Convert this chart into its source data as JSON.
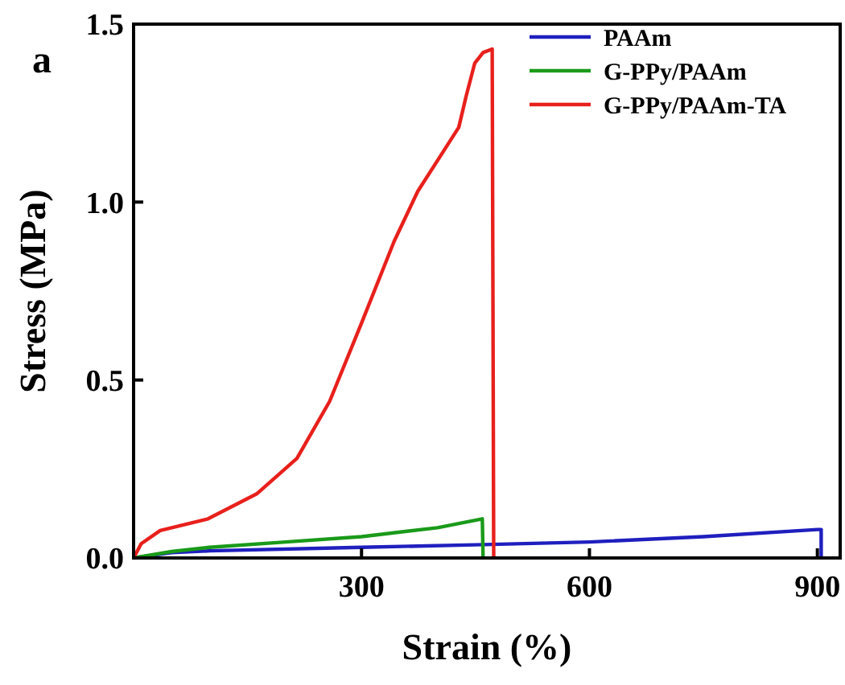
{
  "chart_data": {
    "type": "line",
    "title": "a",
    "xlabel": "Strain (%)",
    "ylabel": "Stress (MPa)",
    "xlim": [
      0,
      930
    ],
    "ylim": [
      0,
      1.5
    ],
    "xticks": [
      300,
      600,
      900
    ],
    "yticks": [
      {
        "value": 0,
        "label": "0.0"
      },
      0.5,
      {
        "value": 1,
        "label": "1.0"
      },
      1.5
    ],
    "grid": false,
    "legend": "top right",
    "marker": "none",
    "line_style": "solid",
    "series": [
      {
        "name": "PAAm",
        "color": "#1f1fbf",
        "x": [
          0,
          50,
          100,
          300,
          450,
          600,
          750,
          900,
          905,
          905
        ],
        "values": [
          0,
          0.015,
          0.02,
          0.03,
          0.037,
          0.045,
          0.06,
          0.08,
          0.08,
          0
        ]
      },
      {
        "name": "G-PPy/PAAm",
        "color": "#1a9a1a",
        "x": [
          0,
          50,
          100,
          200,
          300,
          400,
          459,
          460
        ],
        "values": [
          0,
          0.018,
          0.03,
          0.045,
          0.06,
          0.085,
          0.11,
          0
        ]
      },
      {
        "name": "G-PPy/PAAm-TA",
        "color": "#e8201c",
        "x": [
          0,
          10,
          35,
          98,
          162,
          215,
          258,
          300,
          343,
          374,
          407,
          428,
          438,
          449,
          460,
          472,
          474
        ],
        "values": [
          0,
          0.04,
          0.077,
          0.11,
          0.18,
          0.28,
          0.44,
          0.66,
          0.89,
          1.03,
          1.14,
          1.21,
          1.3,
          1.39,
          1.42,
          1.43,
          0
        ]
      }
    ]
  }
}
